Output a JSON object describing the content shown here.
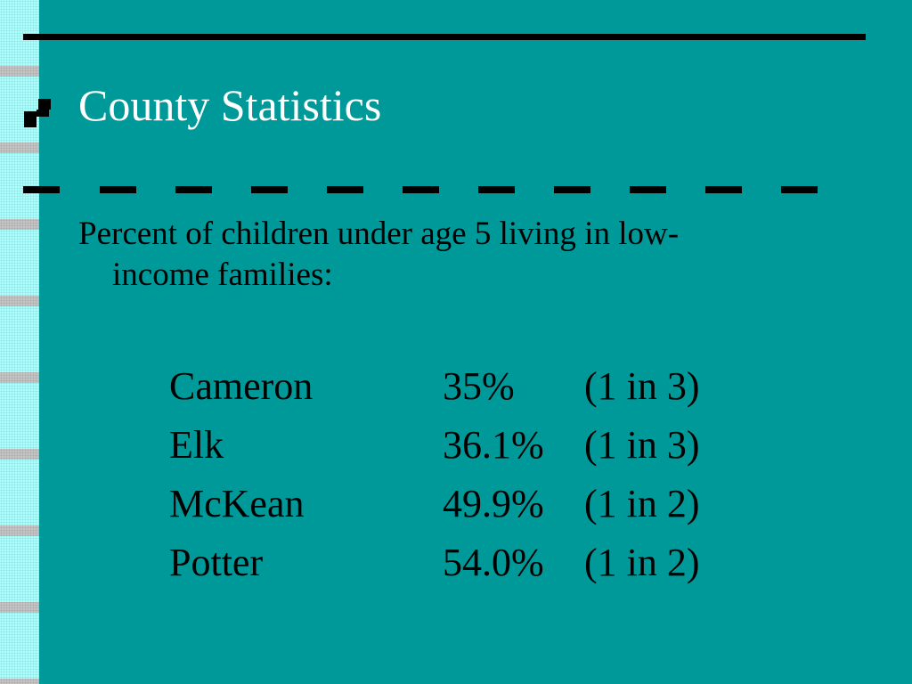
{
  "slide": {
    "title": "County Statistics",
    "subtitle_line1": "Percent of children under age 5 living in low-",
    "subtitle_line2": "income families:",
    "rows": [
      {
        "county": "Cameron",
        "percent": "35%",
        "ratio": "(1 in 3)"
      },
      {
        "county": "Elk",
        "percent": "36.1%",
        "ratio": "(1 in 3)"
      },
      {
        "county": "McKean",
        "percent": "49.9%",
        "ratio": "(1 in 2)"
      },
      {
        "county": "Potter",
        "percent": "54.0%",
        "ratio": "(1 in 2)"
      }
    ]
  },
  "colors": {
    "background": "#009999",
    "title_text": "#ffffff",
    "body_text": "#000000",
    "rule": "#000000",
    "strip_light": "#aaffff",
    "strip_gray": "#c4c4c4"
  },
  "icons": {
    "title_bullet": "square-bullet-icon"
  }
}
